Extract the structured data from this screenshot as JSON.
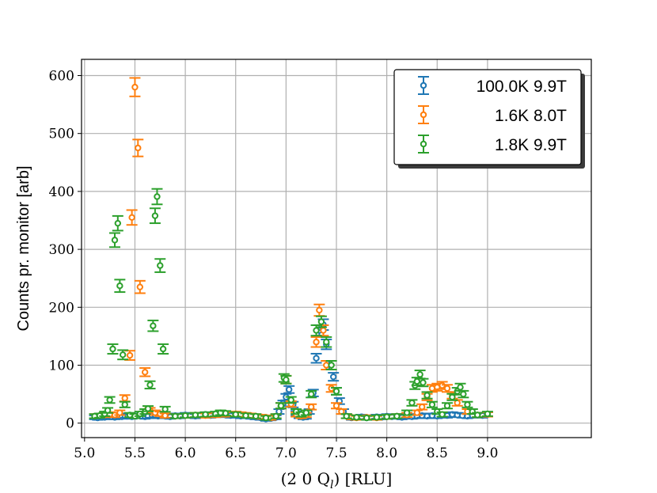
{
  "chart_data": {
    "type": "scatter",
    "title": "",
    "xlabel": "(2 0 Q",
    "xlabel_sub": "l",
    "xlabel_tail": ") [RLU]",
    "ylabel": "Counts pr. monitor [arb]",
    "xlim": [
      4.97,
      10.03
    ],
    "ylim": [
      -25,
      628
    ],
    "xticks": [
      5.0,
      5.5,
      6.0,
      6.5,
      7.0,
      7.5,
      8.0,
      8.5,
      9.0
    ],
    "xtick_labels": [
      "5.0",
      "5.5",
      "6.0",
      "6.5",
      "7.0",
      "7.5",
      "8.0",
      "8.5",
      "9.0"
    ],
    "yticks": [
      0,
      100,
      200,
      300,
      400,
      500,
      600
    ],
    "ytick_labels": [
      "0",
      "100",
      "200",
      "300",
      "400",
      "500",
      "600"
    ],
    "grid": true,
    "legend_position": "top-right",
    "series": [
      {
        "name": "100.0K 9.9T",
        "color": "#1f77b4",
        "marker": "open-circle",
        "x": [
          5.1,
          5.13,
          5.17,
          5.2,
          5.23,
          5.27,
          5.3,
          5.33,
          5.37,
          5.4,
          5.43,
          5.47,
          5.5,
          5.53,
          5.57,
          5.6,
          5.63,
          5.67,
          5.7,
          5.73,
          5.77,
          5.8,
          5.85,
          5.9,
          5.95,
          6.0,
          6.05,
          6.1,
          6.15,
          6.2,
          6.25,
          6.3,
          6.35,
          6.4,
          6.45,
          6.5,
          6.55,
          6.6,
          6.65,
          6.7,
          6.75,
          6.8,
          6.85,
          6.9,
          6.93,
          6.97,
          7.0,
          7.03,
          7.07,
          7.1,
          7.13,
          7.17,
          7.2,
          7.23,
          7.27,
          7.3,
          7.33,
          7.37,
          7.4,
          7.43,
          7.47,
          7.5,
          7.53,
          7.57,
          7.6,
          7.65,
          7.7,
          7.75,
          7.8,
          7.85,
          7.9,
          7.95,
          8.0,
          8.05,
          8.1,
          8.15,
          8.2,
          8.25,
          8.3,
          8.35,
          8.4,
          8.45,
          8.5,
          8.55,
          8.6,
          8.65,
          8.7,
          8.75,
          8.8,
          8.85,
          8.9,
          8.95,
          9.0
        ],
        "y": [
          10,
          9,
          11,
          10,
          12,
          11,
          10,
          12,
          11,
          13,
          12,
          11,
          12,
          13,
          12,
          11,
          12,
          13,
          14,
          12,
          13,
          12,
          11,
          13,
          12,
          14,
          13,
          12,
          14,
          15,
          13,
          14,
          15,
          14,
          13,
          14,
          12,
          13,
          11,
          10,
          9,
          7,
          8,
          10,
          20,
          34,
          45,
          58,
          32,
          17,
          12,
          10,
          11,
          20,
          52,
          112,
          160,
          170,
          136,
          100,
          80,
          55,
          38,
          20,
          12,
          9,
          10,
          11,
          9,
          10,
          11,
          10,
          12,
          11,
          12,
          10,
          12,
          11,
          12,
          13,
          12,
          13,
          12,
          14,
          13,
          15,
          14,
          13,
          12,
          13,
          14,
          13,
          15
        ]
      },
      {
        "name": "1.6K 8.0T",
        "color": "#ff7f0e",
        "marker": "open-circle",
        "x": [
          5.1,
          5.15,
          5.2,
          5.25,
          5.3,
          5.35,
          5.4,
          5.45,
          5.47,
          5.5,
          5.53,
          5.55,
          5.6,
          5.65,
          5.7,
          5.75,
          5.8,
          5.9,
          6.0,
          6.1,
          6.2,
          6.3,
          6.4,
          6.5,
          6.55,
          6.6,
          6.65,
          6.7,
          6.75,
          6.8,
          6.85,
          6.9,
          6.95,
          7.0,
          7.05,
          7.1,
          7.15,
          7.2,
          7.25,
          7.3,
          7.33,
          7.37,
          7.4,
          7.45,
          7.5,
          7.55,
          7.6,
          7.65,
          7.7,
          7.8,
          7.9,
          8.0,
          8.1,
          8.2,
          8.3,
          8.35,
          8.4,
          8.45,
          8.5,
          8.55,
          8.6,
          8.65,
          8.7,
          8.8,
          8.9,
          9.0
        ],
        "y": [
          12,
          13,
          14,
          15,
          14,
          18,
          43,
          117,
          355,
          580,
          475,
          235,
          88,
          22,
          18,
          16,
          13,
          12,
          13,
          14,
          13,
          14,
          15,
          16,
          15,
          14,
          13,
          12,
          11,
          10,
          9,
          12,
          30,
          75,
          33,
          15,
          12,
          14,
          28,
          140,
          195,
          160,
          100,
          60,
          30,
          20,
          12,
          10,
          9,
          10,
          9,
          11,
          12,
          14,
          18,
          28,
          45,
          60,
          62,
          65,
          60,
          48,
          35,
          20,
          14,
          15
        ]
      },
      {
        "name": "1.8K 9.9T",
        "color": "#2ca02c",
        "marker": "open-circle",
        "x": [
          5.1,
          5.15,
          5.2,
          5.23,
          5.25,
          5.28,
          5.3,
          5.33,
          5.35,
          5.38,
          5.4,
          5.45,
          5.5,
          5.55,
          5.6,
          5.63,
          5.65,
          5.68,
          5.7,
          5.72,
          5.75,
          5.78,
          5.8,
          5.9,
          6.0,
          6.1,
          6.2,
          6.3,
          6.35,
          6.4,
          6.5,
          6.6,
          6.7,
          6.8,
          6.9,
          6.95,
          6.98,
          7.0,
          7.05,
          7.1,
          7.15,
          7.2,
          7.25,
          7.3,
          7.35,
          7.4,
          7.45,
          7.5,
          7.6,
          7.7,
          7.8,
          7.9,
          8.0,
          8.1,
          8.2,
          8.25,
          8.28,
          8.3,
          8.33,
          8.36,
          8.4,
          8.45,
          8.5,
          8.55,
          8.6,
          8.65,
          8.7,
          8.73,
          8.76,
          8.8,
          8.85,
          8.9,
          9.0
        ],
        "y": [
          12,
          13,
          16,
          22,
          40,
          128,
          316,
          345,
          237,
          118,
          32,
          14,
          12,
          16,
          20,
          25,
          66,
          168,
          358,
          391,
          272,
          128,
          24,
          12,
          13,
          14,
          15,
          16,
          18,
          17,
          15,
          13,
          12,
          9,
          12,
          30,
          78,
          75,
          40,
          20,
          15,
          18,
          50,
          160,
          175,
          140,
          100,
          55,
          12,
          10,
          9,
          10,
          11,
          12,
          18,
          35,
          65,
          72,
          84,
          70,
          48,
          32,
          20,
          15,
          30,
          45,
          55,
          62,
          50,
          32,
          20,
          14,
          16
        ]
      }
    ]
  }
}
